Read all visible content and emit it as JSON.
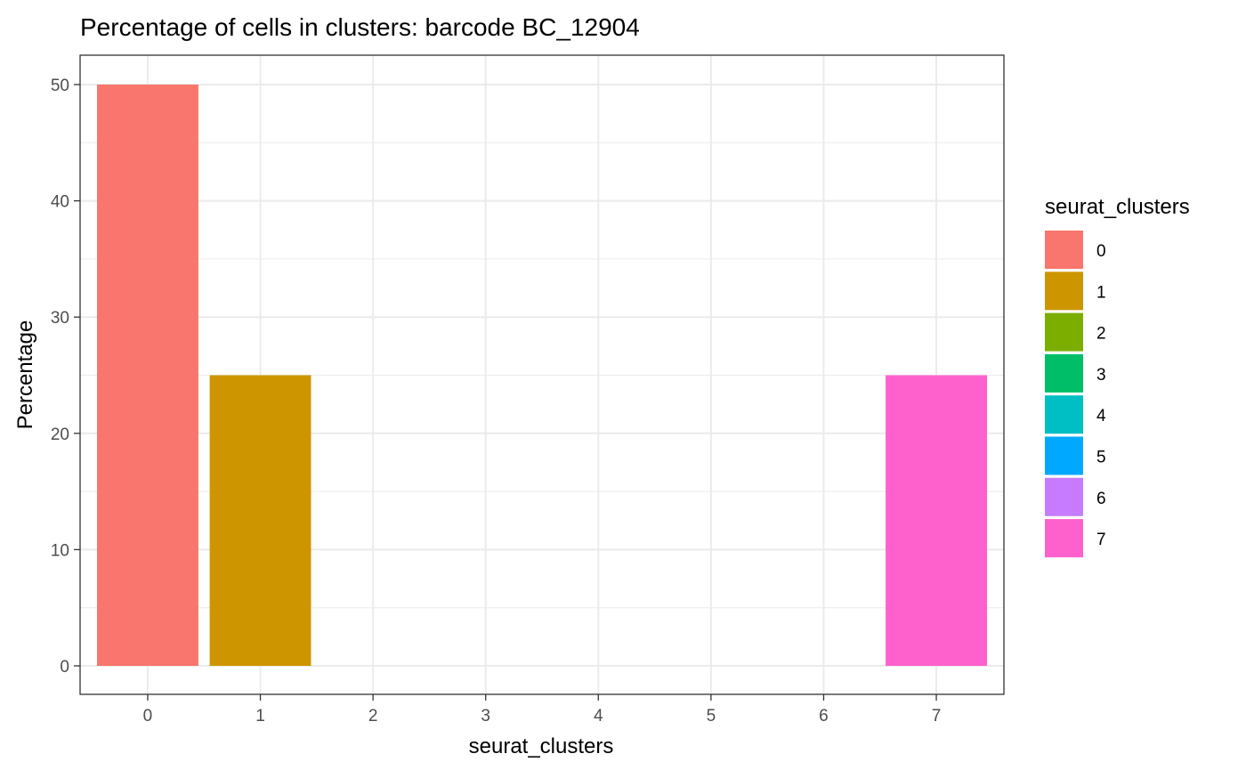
{
  "chart_data": {
    "type": "bar",
    "title": "Percentage of cells in clusters: barcode BC_12904",
    "xlabel": "seurat_clusters",
    "ylabel": "Percentage",
    "categories": [
      "0",
      "1",
      "2",
      "3",
      "4",
      "5",
      "6",
      "7"
    ],
    "values": [
      50,
      25,
      0,
      0,
      0,
      0,
      0,
      25
    ],
    "colors": [
      "#F8766D",
      "#CD9600",
      "#7CAE00",
      "#00BE67",
      "#00BFC4",
      "#00A9FF",
      "#C77CFF",
      "#FF61CC"
    ],
    "ylim": [
      0,
      52.5
    ],
    "yticks": [
      "0",
      "10",
      "20",
      "30",
      "40",
      "50"
    ],
    "grid": true,
    "legend": {
      "title": "seurat_clusters",
      "position": "right",
      "entries": [
        "0",
        "1",
        "2",
        "3",
        "4",
        "5",
        "6",
        "7"
      ]
    }
  }
}
